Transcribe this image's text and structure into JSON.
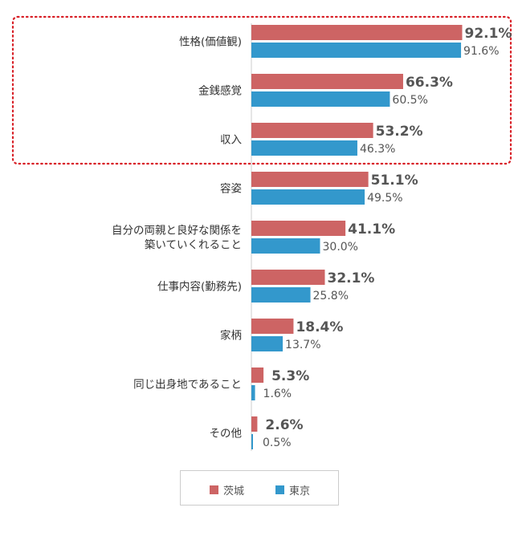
{
  "chart_data": {
    "type": "bar",
    "orientation": "horizontal",
    "categories": [
      [
        "性格(価値観)"
      ],
      [
        "金銭感覚"
      ],
      [
        "収入"
      ],
      [
        "容姿"
      ],
      [
        "自分の両親と良好な関係を",
        "築いていくれること"
      ],
      [
        "仕事内容(勤務先)"
      ],
      [
        "家柄"
      ],
      [
        "同じ出身地であること"
      ],
      [
        "その他"
      ]
    ],
    "series": [
      {
        "name": "茨城",
        "color": "#cd6464",
        "values": [
          92.1,
          66.3,
          53.2,
          51.1,
          41.1,
          32.1,
          18.4,
          5.3,
          2.6
        ],
        "labels": [
          "92.1%",
          "66.3%",
          "53.2%",
          "51.1%",
          "41.1%",
          "32.1%",
          "18.4%",
          "5.3%",
          "2.6%"
        ]
      },
      {
        "name": "東京",
        "color": "#3398cc",
        "values": [
          91.6,
          60.5,
          46.3,
          49.5,
          30.0,
          25.8,
          13.7,
          1.6,
          0.5
        ],
        "labels": [
          "91.6%",
          "60.5%",
          "46.3%",
          "49.5%",
          "30.0%",
          "25.8%",
          "13.7%",
          "1.6%",
          "0.5%"
        ]
      }
    ],
    "xlim": [
      0,
      100
    ],
    "highlight": {
      "categories": [
        0,
        1,
        2
      ],
      "color": "#d81f26",
      "style": "dotted"
    },
    "legend_position": "bottom-center"
  },
  "legend": {
    "items": [
      {
        "label": "茨城",
        "color": "#cd6464"
      },
      {
        "label": "東京",
        "color": "#3398cc"
      }
    ]
  }
}
